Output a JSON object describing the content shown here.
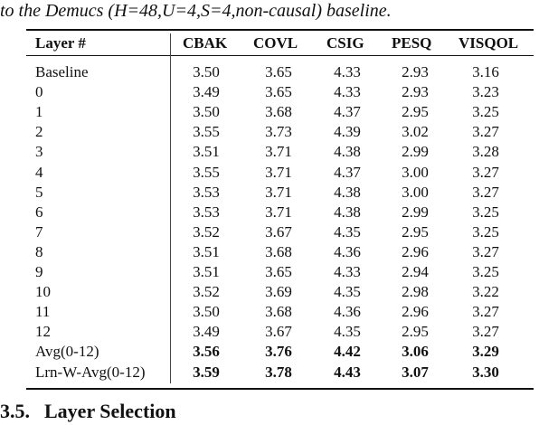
{
  "caption": "to the Demucs (H=48,U=4,S=4,non-causal) baseline.",
  "table": {
    "headers": [
      "Layer #",
      "CBAK",
      "COVL",
      "CSIG",
      "PESQ",
      "VISQOL"
    ],
    "rows": [
      {
        "label": "Baseline",
        "values": [
          "3.50",
          "3.65",
          "4.33",
          "2.93",
          "3.16"
        ],
        "bold": false
      },
      {
        "label": "0",
        "values": [
          "3.49",
          "3.65",
          "4.33",
          "2.93",
          "3.23"
        ],
        "bold": false
      },
      {
        "label": "1",
        "values": [
          "3.50",
          "3.68",
          "4.37",
          "2.95",
          "3.25"
        ],
        "bold": false
      },
      {
        "label": "2",
        "values": [
          "3.55",
          "3.73",
          "4.39",
          "3.02",
          "3.27"
        ],
        "bold": false
      },
      {
        "label": "3",
        "values": [
          "3.51",
          "3.71",
          "4.38",
          "2.99",
          "3.28"
        ],
        "bold": false
      },
      {
        "label": "4",
        "values": [
          "3.55",
          "3.71",
          "4.37",
          "3.00",
          "3.27"
        ],
        "bold": false
      },
      {
        "label": "5",
        "values": [
          "3.53",
          "3.71",
          "4.38",
          "3.00",
          "3.27"
        ],
        "bold": false
      },
      {
        "label": "6",
        "values": [
          "3.53",
          "3.71",
          "4.38",
          "2.99",
          "3.25"
        ],
        "bold": false
      },
      {
        "label": "7",
        "values": [
          "3.52",
          "3.67",
          "4.35",
          "2.95",
          "3.25"
        ],
        "bold": false
      },
      {
        "label": "8",
        "values": [
          "3.51",
          "3.68",
          "4.36",
          "2.96",
          "3.27"
        ],
        "bold": false
      },
      {
        "label": "9",
        "values": [
          "3.51",
          "3.65",
          "4.33",
          "2.94",
          "3.25"
        ],
        "bold": false
      },
      {
        "label": "10",
        "values": [
          "3.52",
          "3.69",
          "4.35",
          "2.98",
          "3.22"
        ],
        "bold": false
      },
      {
        "label": "11",
        "values": [
          "3.50",
          "3.68",
          "4.36",
          "2.96",
          "3.27"
        ],
        "bold": false
      },
      {
        "label": "12",
        "values": [
          "3.49",
          "3.67",
          "4.35",
          "2.95",
          "3.27"
        ],
        "bold": false
      },
      {
        "label": "Avg(0-12)",
        "values": [
          "3.56",
          "3.76",
          "4.42",
          "3.06",
          "3.29"
        ],
        "bold": true
      },
      {
        "label": "Lrn-W-Avg(0-12)",
        "values": [
          "3.59",
          "3.78",
          "4.43",
          "3.07",
          "3.30"
        ],
        "bold": true
      }
    ]
  },
  "section": {
    "number": "3.5.",
    "title": "Layer Selection"
  }
}
